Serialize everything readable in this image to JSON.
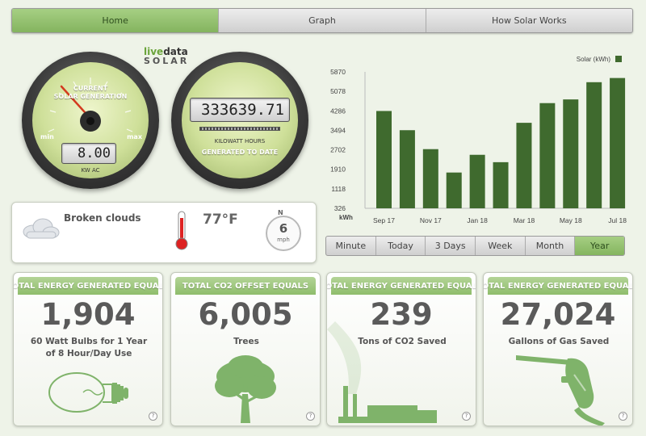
{
  "nav": {
    "tabs": [
      "Home",
      "Graph",
      "How Solar Works"
    ],
    "active": 0
  },
  "logo": {
    "live": "live",
    "data": "data",
    "solar": "SOLAR"
  },
  "current_gauge": {
    "title_line1": "CURRENT",
    "title_line2": "SOLAR GENERATION",
    "min_label": "min",
    "max_label": "max",
    "value": "8.00",
    "unit": "KW AC"
  },
  "total_gauge": {
    "value": "333639.71",
    "unit_line1": "KILOWATT HOURS",
    "unit_line2": "GENERATED TO DATE"
  },
  "weather": {
    "condition": "Broken clouds",
    "temperature": "77°F",
    "wind_dir": "N",
    "wind_speed": "6",
    "wind_unit": "mph"
  },
  "chart_data": {
    "type": "bar",
    "legend": "Solar (kWh)",
    "ylabel": "kWh",
    "yticks": [
      326,
      1118,
      1910,
      2702,
      3494,
      4286,
      5078,
      5870
    ],
    "ylim": [
      326,
      5870
    ],
    "xticks": [
      "Sep 17",
      "Nov 17",
      "Jan 18",
      "Mar 18",
      "May 18",
      "Jul 18"
    ],
    "categories": [
      "Sep 17",
      "Oct 17",
      "Nov 17",
      "Dec 17",
      "Jan 18",
      "Feb 18",
      "Mar 18",
      "Apr 18",
      "May 18",
      "Jun 18",
      "Jul 18"
    ],
    "values": [
      4280,
      3500,
      2730,
      1780,
      2500,
      2200,
      3800,
      4600,
      4750,
      5450,
      5620
    ],
    "color": "#3f6a2e"
  },
  "periods": {
    "items": [
      "Minute",
      "Today",
      "3 Days",
      "Week",
      "Month",
      "Year"
    ],
    "active": 5
  },
  "cards": [
    {
      "header": "TOTAL ENERGY GENERATED EQUALS",
      "value": "1,904",
      "desc": "60 Watt Bulbs for 1 Year of 8 Hour/Day Use",
      "icon": "lightbulb-icon"
    },
    {
      "header": "TOTAL CO2 OFFSET EQUALS",
      "value": "6,005",
      "desc": "Trees",
      "icon": "tree-icon"
    },
    {
      "header": "TOTAL ENERGY GENERATED EQUALS",
      "value": "239",
      "desc": "Tons of CO2 Saved",
      "icon": "factory-icon"
    },
    {
      "header": "TOTAL ENERGY GENERATED EQUALS",
      "value": "27,024",
      "desc": "Gallons of Gas Saved",
      "icon": "gas-nozzle-icon"
    }
  ],
  "help_glyph": "?",
  "colors": {
    "accent": "#8fbd6c",
    "bar": "#3f6a2e",
    "icon": "#7fb36a"
  }
}
